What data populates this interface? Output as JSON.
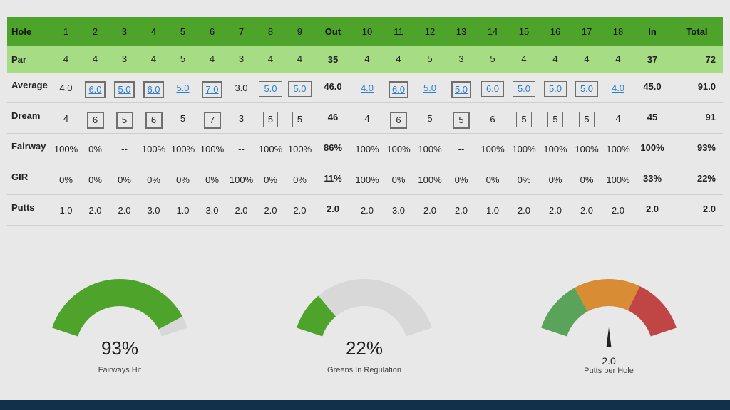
{
  "scorecard": {
    "header": {
      "label": "Hole",
      "holes_front": [
        "1",
        "2",
        "3",
        "4",
        "5",
        "6",
        "7",
        "8",
        "9"
      ],
      "out": "Out",
      "holes_back": [
        "10",
        "11",
        "12",
        "13",
        "14",
        "15",
        "16",
        "17",
        "18"
      ],
      "in": "In",
      "total": "Total"
    },
    "rows": [
      {
        "key": "par",
        "label": "Par",
        "front": [
          "4",
          "4",
          "3",
          "4",
          "5",
          "4",
          "3",
          "4",
          "4"
        ],
        "out": "35",
        "back": [
          "4",
          "4",
          "5",
          "3",
          "5",
          "4",
          "4",
          "4",
          "4"
        ],
        "in": "37",
        "total": "72",
        "styles_front": [
          "",
          "",
          "",
          "",
          "",
          "",
          "",
          "",
          ""
        ],
        "styles_back": [
          "",
          "",
          "",
          "",
          "",
          "",
          "",
          "",
          ""
        ]
      },
      {
        "key": "average",
        "label": "Average",
        "front": [
          "4.0",
          "6.0",
          "5.0",
          "6.0",
          "5.0",
          "7.0",
          "3.0",
          "5.0",
          "5.0"
        ],
        "out": "46.0",
        "back": [
          "4.0",
          "6.0",
          "5.0",
          "5.0",
          "6.0",
          "5.0",
          "5.0",
          "5.0",
          "4.0"
        ],
        "in": "45.0",
        "total": "91.0",
        "styles_front": [
          "plain",
          "link-box2",
          "link-box2",
          "link-box2",
          "link",
          "link-box2",
          "plain",
          "link-box1",
          "link-box1"
        ],
        "styles_back": [
          "link",
          "link-box2",
          "link",
          "link-box2",
          "link-box1",
          "link-box1",
          "link-box1",
          "link-box1",
          "link"
        ]
      },
      {
        "key": "dream",
        "label": "Dream",
        "front": [
          "4",
          "6",
          "5",
          "6",
          "5",
          "7",
          "3",
          "5",
          "5"
        ],
        "out": "46",
        "back": [
          "4",
          "6",
          "5",
          "5",
          "6",
          "5",
          "5",
          "5",
          "4"
        ],
        "in": "45",
        "total": "91",
        "styles_front": [
          "plain",
          "box2",
          "box2",
          "box2",
          "plain",
          "box2",
          "plain",
          "box1",
          "box1"
        ],
        "styles_back": [
          "plain",
          "box2",
          "plain",
          "box2",
          "box1",
          "box1",
          "box1",
          "box1",
          "plain"
        ]
      },
      {
        "key": "fairway",
        "label": "Fairway",
        "front": [
          "100%",
          "0%",
          "--",
          "100%",
          "100%",
          "100%",
          "--",
          "100%",
          "100%"
        ],
        "out": "86%",
        "back": [
          "100%",
          "100%",
          "100%",
          "--",
          "100%",
          "100%",
          "100%",
          "100%",
          "100%"
        ],
        "in": "100%",
        "total": "93%",
        "styles_front": [
          "",
          "",
          "",
          "",
          "",
          "",
          "",
          "",
          ""
        ],
        "styles_back": [
          "",
          "",
          "",
          "",
          "",
          "",
          "",
          "",
          ""
        ]
      },
      {
        "key": "gir",
        "label": "GIR",
        "front": [
          "0%",
          "0%",
          "0%",
          "0%",
          "0%",
          "0%",
          "100%",
          "0%",
          "0%"
        ],
        "out": "11%",
        "back": [
          "100%",
          "0%",
          "100%",
          "0%",
          "0%",
          "0%",
          "0%",
          "0%",
          "100%"
        ],
        "in": "33%",
        "total": "22%",
        "styles_front": [
          "",
          "",
          "",
          "",
          "",
          "",
          "",
          "",
          ""
        ],
        "styles_back": [
          "",
          "",
          "",
          "",
          "",
          "",
          "",
          "",
          ""
        ]
      },
      {
        "key": "putts",
        "label": "Putts",
        "front": [
          "1.0",
          "2.0",
          "2.0",
          "3.0",
          "1.0",
          "3.0",
          "2.0",
          "2.0",
          "2.0"
        ],
        "out": "2.0",
        "back": [
          "2.0",
          "3.0",
          "2.0",
          "2.0",
          "1.0",
          "2.0",
          "2.0",
          "2.0",
          "2.0"
        ],
        "in": "2.0",
        "total": "2.0",
        "styles_front": [
          "",
          "",
          "",
          "",
          "",
          "",
          "",
          "",
          ""
        ],
        "styles_back": [
          "",
          "",
          "",
          "",
          "",
          "",
          "",
          "",
          ""
        ]
      }
    ]
  },
  "gauges": {
    "fairways": {
      "value_text": "93%",
      "label": "Fairways Hit",
      "fraction": 0.93,
      "fill_color": "#4ea42a",
      "track_color": "#d8d8d8"
    },
    "greens": {
      "value_text": "22%",
      "label": "Greens In Regulation",
      "fraction": 0.22,
      "fill_color": "#4ea42a",
      "track_color": "#d8d8d8"
    },
    "putts": {
      "value_text": "2.0",
      "label": "Putts per Hole",
      "needle_fraction": 0.5,
      "zone_colors": [
        "#5aa35a",
        "#d88c33",
        "#c04646"
      ]
    }
  },
  "colors": {
    "header_green": "#4ea42a",
    "par_green": "#a5dc84",
    "link_blue": "#2a7fd0",
    "footer_navy": "#13304a"
  }
}
